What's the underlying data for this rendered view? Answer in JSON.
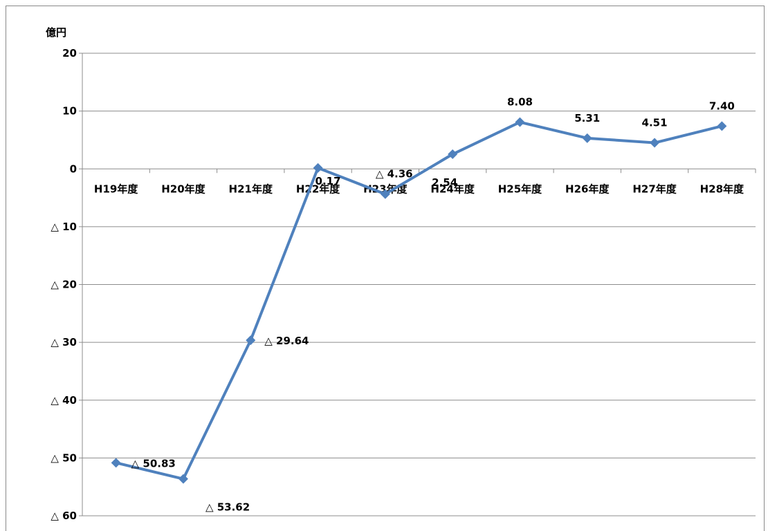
{
  "chart_data": {
    "type": "line",
    "unit_label": "億円",
    "categories": [
      "H19年度",
      "H20年度",
      "H21年度",
      "H22年度",
      "H23年度",
      "H24年度",
      "H25年度",
      "H26年度",
      "H27年度",
      "H28年度"
    ],
    "series": [
      {
        "values": [
          -50.83,
          -53.62,
          -29.64,
          0.17,
          -4.36,
          2.54,
          8.08,
          5.31,
          4.51,
          7.4
        ],
        "labels": [
          "△ 50.83",
          "△ 53.62",
          "△ 29.64",
          "0.17",
          "△ 4.36",
          "2.54",
          "8.08",
          "5.31",
          "4.51",
          "7.40"
        ],
        "color": "#4F81BD"
      }
    ],
    "y_ticks": [
      {
        "value": 20,
        "label": "20"
      },
      {
        "value": 10,
        "label": "10"
      },
      {
        "value": 0,
        "label": "0"
      },
      {
        "value": -10,
        "label": "△ 10"
      },
      {
        "value": -20,
        "label": "△ 20"
      },
      {
        "value": -30,
        "label": "△ 30"
      },
      {
        "value": -40,
        "label": "△ 40"
      },
      {
        "value": -50,
        "label": "△ 50"
      },
      {
        "value": -60,
        "label": "△ 60"
      }
    ],
    "ylim": [
      -60,
      20
    ],
    "grid": true
  }
}
